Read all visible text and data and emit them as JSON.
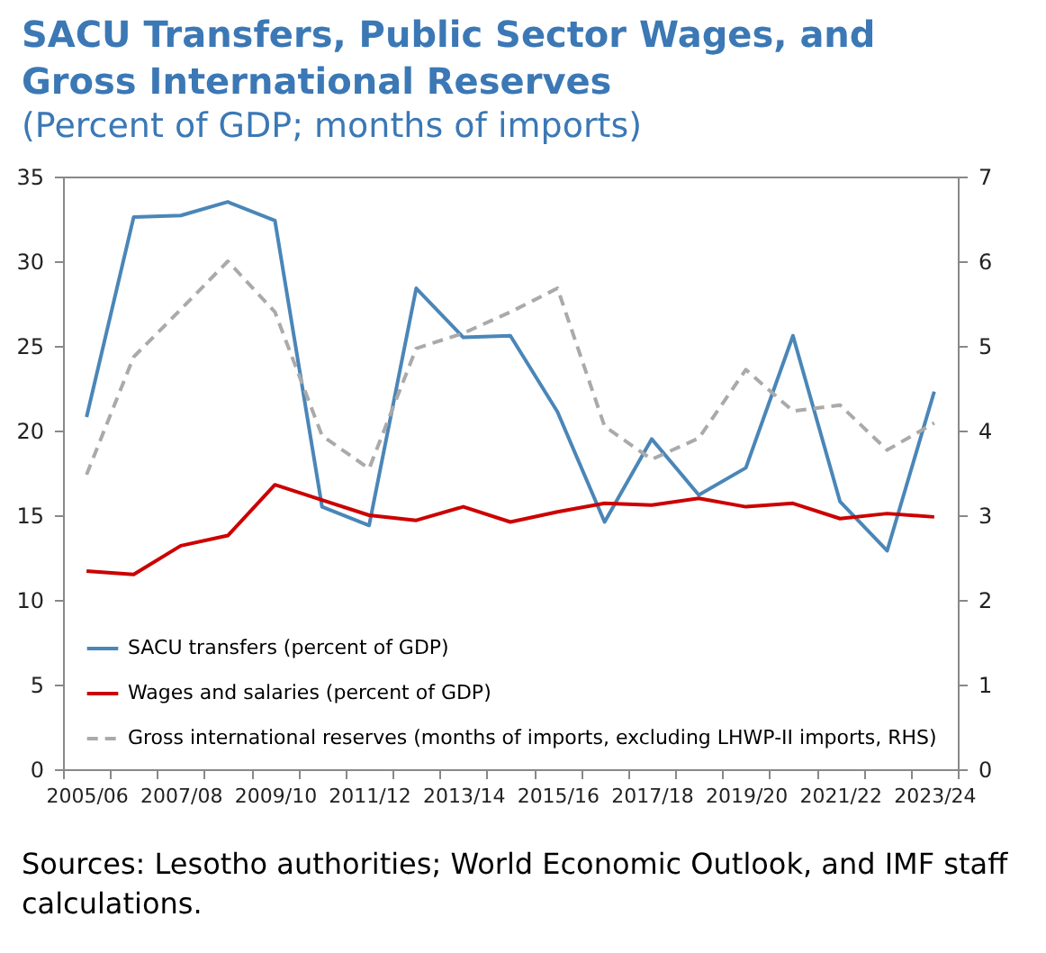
{
  "chart_data": {
    "type": "line",
    "title": "SACU Transfers, Public Sector Wages, and Gross International Reserves",
    "subtitle": "(Percent of GDP; months of imports)",
    "categories": [
      "2005/06",
      null,
      "2007/08",
      null,
      "2009/10",
      null,
      "2011/12",
      null,
      "2013/14",
      null,
      "2015/16",
      null,
      "2017/18",
      null,
      "2019/20",
      null,
      "2021/22",
      null,
      "2023/24"
    ],
    "series": [
      {
        "name": "SACU transfers (percent of GDP)",
        "color": "#4a86b8",
        "values": [
          20.8,
          32.6,
          32.7,
          33.5,
          32.4,
          15.5,
          14.4,
          28.4,
          25.5,
          25.6,
          21.1,
          14.6,
          19.5,
          16.2,
          17.8,
          25.6,
          15.8,
          12.9,
          22.3
        ]
      },
      {
        "name": "Wages and salaries (percent of GDP)",
        "color": "#cc0000",
        "values": [
          11.7,
          11.5,
          13.2,
          13.8,
          16.8,
          15.9,
          15.0,
          14.7,
          15.5,
          14.6,
          15.2,
          15.7,
          15.6,
          16.0,
          15.5,
          15.7,
          14.8,
          15.1,
          14.9
        ]
      },
      {
        "name": "Gross international reserves (months of imports, excluding LHWP-II imports, RHS)",
        "color": "#aaaaaa",
        "axis": "y2",
        "line_style": "dashed",
        "values": [
          3.48,
          4.87,
          5.43,
          6.0,
          5.4,
          3.94,
          3.55,
          4.97,
          5.15,
          5.4,
          5.68,
          4.05,
          3.66,
          3.91,
          4.72,
          4.23,
          4.3,
          3.77,
          4.09
        ]
      }
    ],
    "ylim": [
      0,
      35
    ],
    "yticks": [
      0,
      5,
      10,
      15,
      20,
      25,
      30,
      35
    ],
    "y2lim": [
      0,
      7
    ],
    "y2ticks": [
      0,
      1,
      2,
      3,
      4,
      5,
      6,
      7
    ],
    "grid": false,
    "legend": "bottom left",
    "line_style": "solid",
    "marker": "none",
    "annotations": [
      "Sources: Lesotho authorities; World Economic Outlook, and IMF staff calculations."
    ]
  }
}
